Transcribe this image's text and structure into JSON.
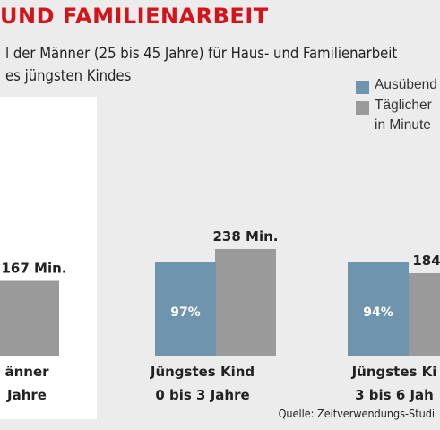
{
  "title": "UND FAMILIENARBEIT",
  "subtitle_line1": "l der Männer (25 bis 45 Jahre) für Haus- und Familienarbeit",
  "subtitle_line2": "es jüngsten Kindes",
  "legend": [
    {
      "label": "Ausübend",
      "color": "#6f94ad"
    },
    {
      "label": "Täglicher",
      "color": "#9a9a9a"
    },
    {
      "label": "in Minute",
      "color": null
    }
  ],
  "source": "Quelle: Zeitverwendungs-Studi",
  "colors": {
    "blue": "#6f94ad",
    "gray": "#9a9a9a",
    "title_red": "#d3141a",
    "panel": "#ffffff",
    "background": "#ececec"
  },
  "chart_data": {
    "type": "bar",
    "categories": [
      [
        "änner",
        " Jahre"
      ],
      [
        "Jüngstes Kind",
        "0 bis 3 Jahre"
      ],
      [
        "Jüngstes Ki",
        "3 bis 6 Jah"
      ]
    ],
    "series": [
      {
        "name": "Ausübend",
        "values": [
          null,
          97,
          94
        ],
        "labels": [
          "",
          "97%",
          "94%"
        ]
      },
      {
        "name": "Täglicher",
        "values": [
          167,
          238,
          184
        ],
        "labels": [
          "167 Min.",
          "238 Min.",
          "184"
        ]
      }
    ],
    "ylim": [
      0,
      260
    ]
  }
}
